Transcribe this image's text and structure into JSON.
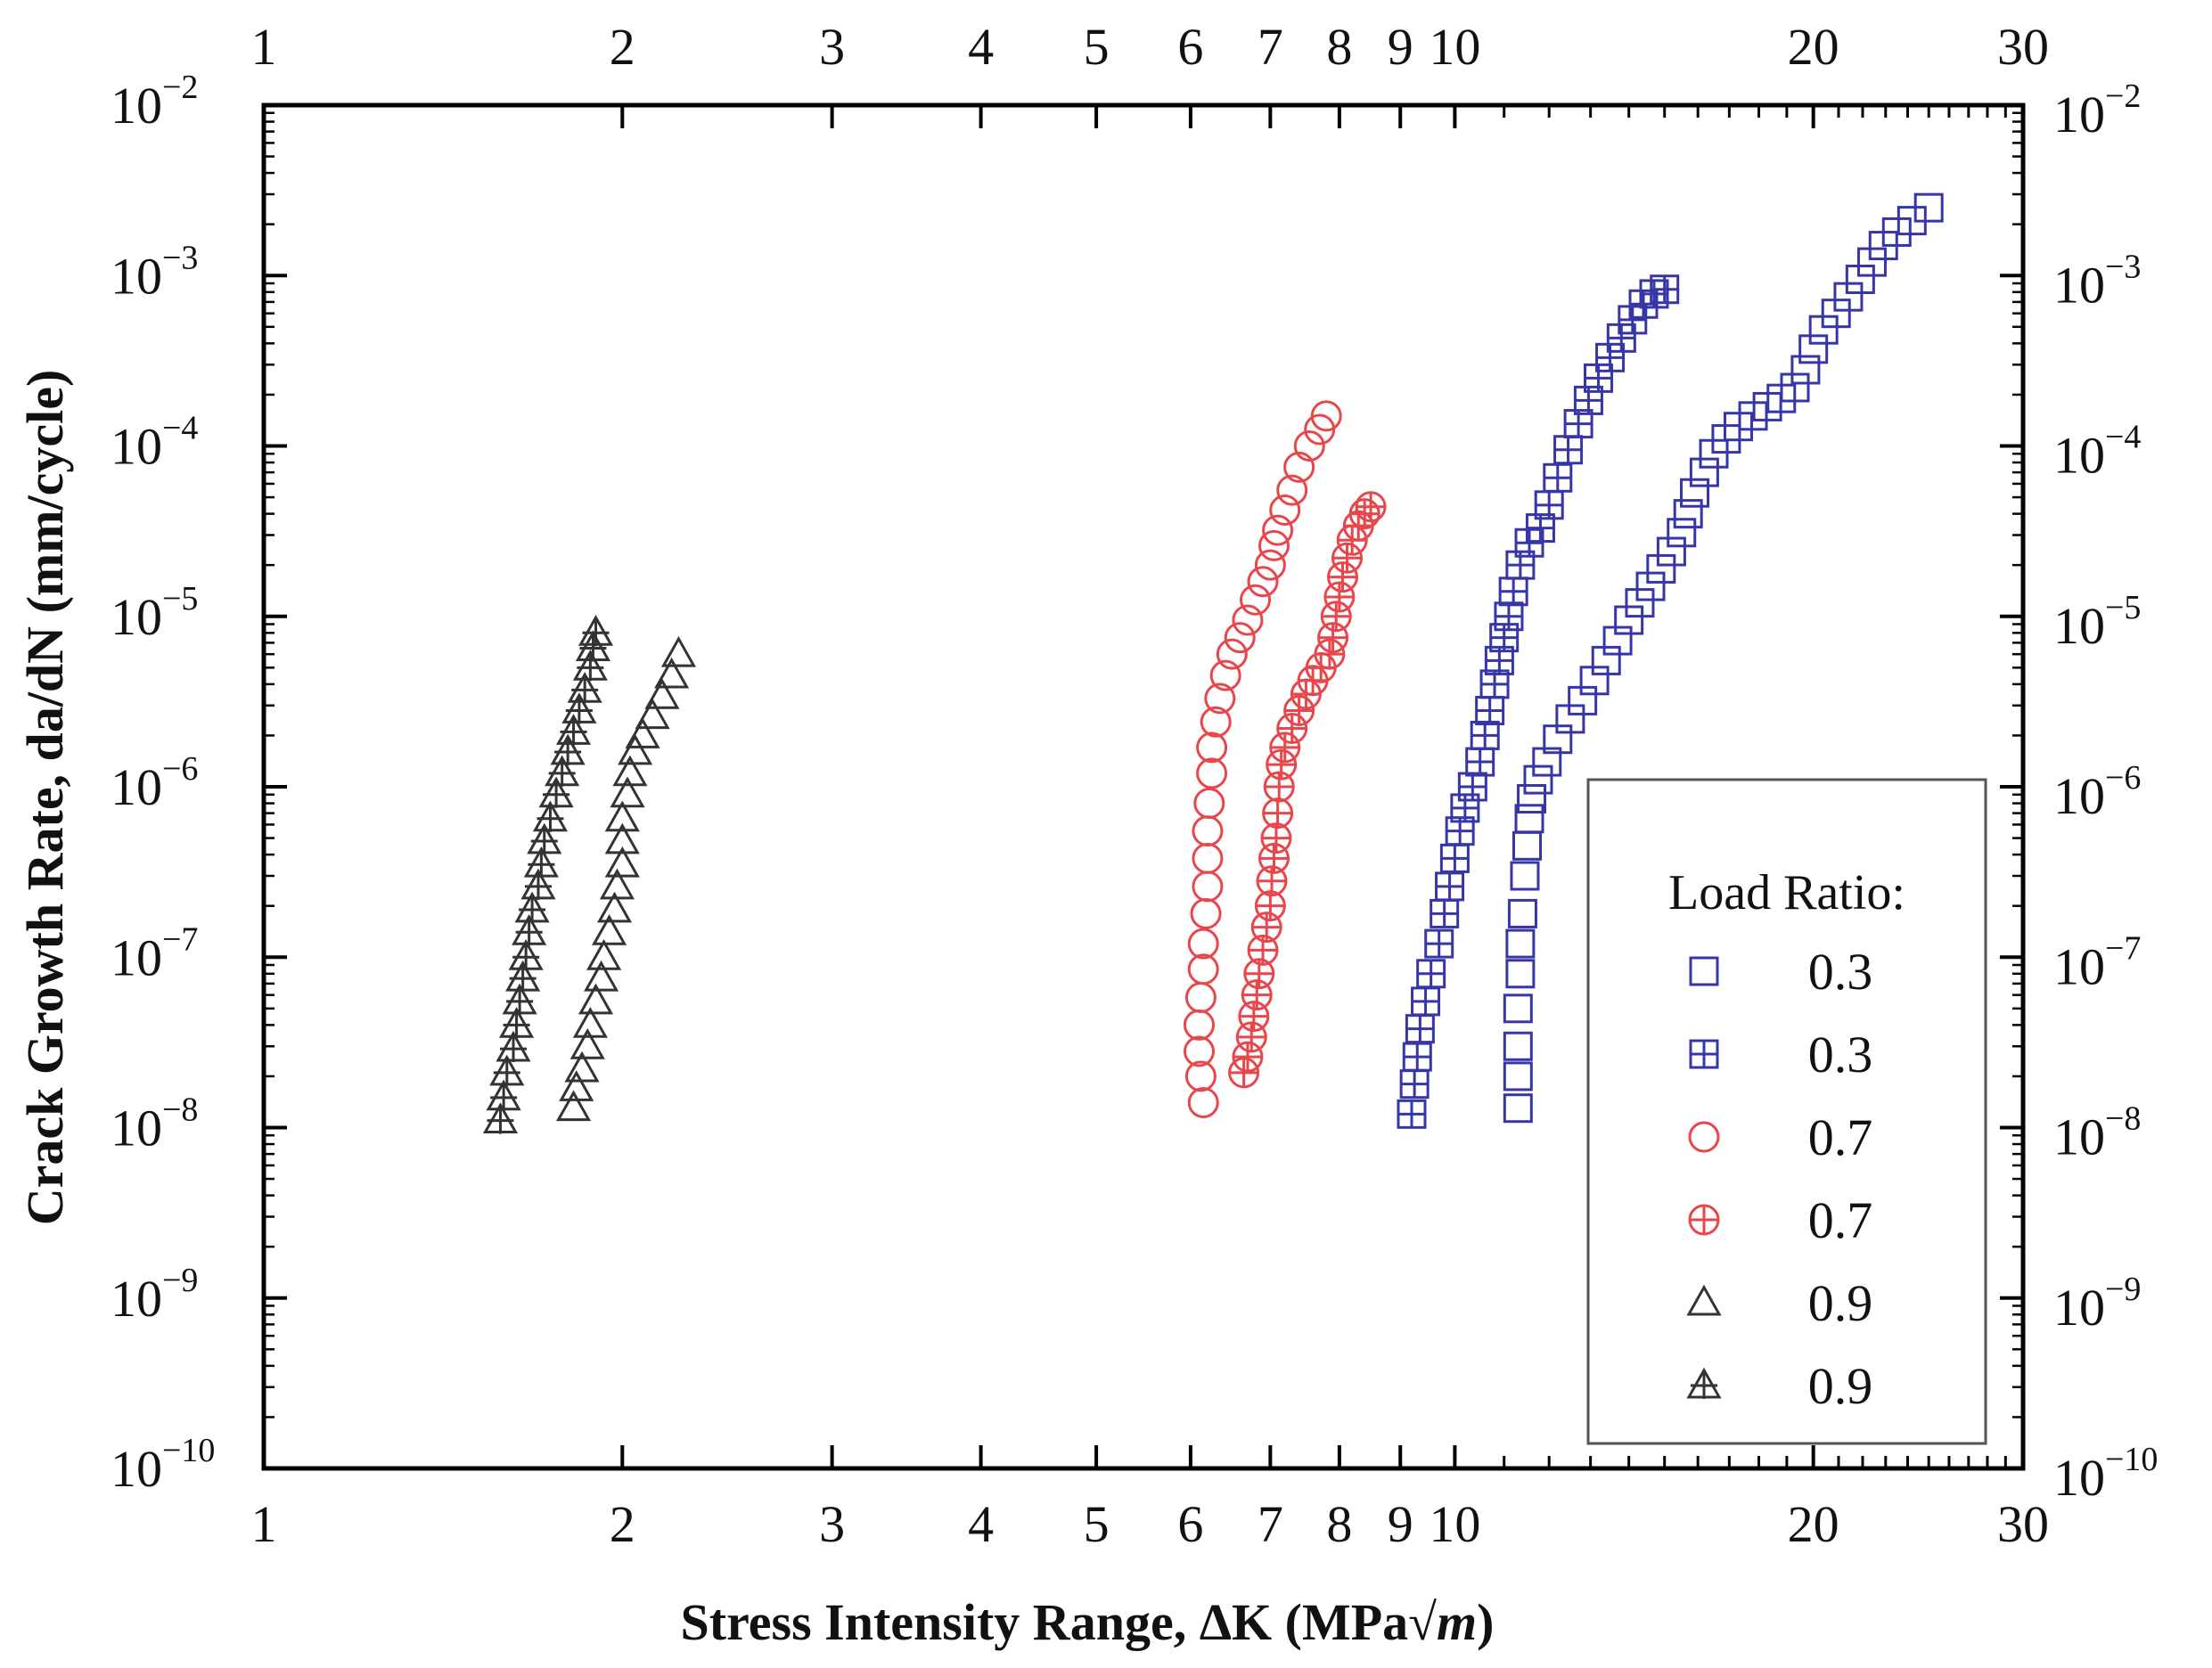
{
  "chart_data": {
    "type": "scatter",
    "title": "",
    "xlabel": "Stress Intensity Range, ΔK (MPa√m)",
    "xlabel_parts": {
      "main": "Stress Intensity Range, ΔK (MPa",
      "radical": "√",
      "unit": "m",
      "close": ")"
    },
    "ylabel": "Crack Growth Rate, da/dN (mm/cycle)",
    "xscale": "log",
    "yscale": "log",
    "xlim": [
      1,
      30
    ],
    "ylim": [
      1e-10,
      0.01
    ],
    "x_ticks": [
      1,
      2,
      3,
      4,
      5,
      6,
      7,
      8,
      9,
      10,
      20,
      30
    ],
    "x_tick_labels": [
      "1",
      "2",
      "3",
      "4",
      "5",
      "6",
      "7",
      "8",
      "9",
      "10",
      "20",
      "30"
    ],
    "y_ticks": [
      {
        "value": 1e-10,
        "base": "10",
        "exp": "−10"
      },
      {
        "value": 1e-09,
        "base": "10",
        "exp": "−9"
      },
      {
        "value": 1e-08,
        "base": "10",
        "exp": "−8"
      },
      {
        "value": 1e-07,
        "base": "10",
        "exp": "−7"
      },
      {
        "value": 1e-06,
        "base": "10",
        "exp": "−6"
      },
      {
        "value": 1e-05,
        "base": "10",
        "exp": "−5"
      },
      {
        "value": 0.0001,
        "base": "10",
        "exp": "−4"
      },
      {
        "value": 0.001,
        "base": "10",
        "exp": "−3"
      },
      {
        "value": 0.01,
        "base": "10",
        "exp": "−2"
      }
    ],
    "legend": {
      "title": "Load Ratio:",
      "position": "lower-right"
    },
    "series": [
      {
        "name": "0.3",
        "marker": "square",
        "color": "#3636a8",
        "points": [
          [
            11.3,
            1.3e-08
          ],
          [
            11.3,
            2e-08
          ],
          [
            11.3,
            3e-08
          ],
          [
            11.3,
            5e-08
          ],
          [
            11.35,
            8e-08
          ],
          [
            11.35,
            1.2e-07
          ],
          [
            11.4,
            1.8e-07
          ],
          [
            11.45,
            3e-07
          ],
          [
            11.5,
            4.5e-07
          ],
          [
            11.55,
            6.5e-07
          ],
          [
            11.6,
            8.5e-07
          ],
          [
            11.75,
            1.1e-06
          ],
          [
            11.95,
            1.4e-06
          ],
          [
            12.2,
            1.9e-06
          ],
          [
            12.5,
            2.5e-06
          ],
          [
            12.8,
            3.2e-06
          ],
          [
            13.1,
            4.2e-06
          ],
          [
            13.4,
            5.5e-06
          ],
          [
            13.7,
            7.2e-06
          ],
          [
            14.0,
            9.5e-06
          ],
          [
            14.3,
            1.2e-05
          ],
          [
            14.6,
            1.5e-05
          ],
          [
            14.9,
            1.9e-05
          ],
          [
            15.2,
            2.4e-05
          ],
          [
            15.5,
            3.1e-05
          ],
          [
            15.7,
            4e-05
          ],
          [
            15.9,
            5.3e-05
          ],
          [
            16.2,
            7e-05
          ],
          [
            16.5,
            9e-05
          ],
          [
            16.9,
            0.00011
          ],
          [
            17.3,
            0.00013
          ],
          [
            17.8,
            0.00015
          ],
          [
            18.3,
            0.00017
          ],
          [
            18.8,
            0.00019
          ],
          [
            19.3,
            0.00022
          ],
          [
            19.7,
            0.00028
          ],
          [
            20.0,
            0.00037
          ],
          [
            20.4,
            0.00048
          ],
          [
            20.9,
            0.0006
          ],
          [
            21.4,
            0.00075
          ],
          [
            21.9,
            0.00095
          ],
          [
            22.4,
            0.0012
          ],
          [
            22.9,
            0.0015
          ],
          [
            23.5,
            0.0018
          ],
          [
            24.2,
            0.0021
          ],
          [
            25.0,
            0.0025
          ]
        ]
      },
      {
        "name": "0.3",
        "marker": "square-plus",
        "color": "#3636a8",
        "points": [
          [
            9.2,
            1.2e-08
          ],
          [
            9.25,
            1.8e-08
          ],
          [
            9.3,
            2.6e-08
          ],
          [
            9.35,
            3.8e-08
          ],
          [
            9.45,
            5.5e-08
          ],
          [
            9.55,
            8e-08
          ],
          [
            9.7,
            1.2e-07
          ],
          [
            9.8,
            1.8e-07
          ],
          [
            9.9,
            2.6e-07
          ],
          [
            10.0,
            3.8e-07
          ],
          [
            10.1,
            5.5e-07
          ],
          [
            10.2,
            7.5e-07
          ],
          [
            10.35,
            1e-06
          ],
          [
            10.5,
            1.4e-06
          ],
          [
            10.6,
            2e-06
          ],
          [
            10.7,
            2.8e-06
          ],
          [
            10.8,
            4e-06
          ],
          [
            10.9,
            5.5e-06
          ],
          [
            11.0,
            7.5e-06
          ],
          [
            11.1,
            1e-05
          ],
          [
            11.2,
            1.4e-05
          ],
          [
            11.35,
            2e-05
          ],
          [
            11.55,
            2.7e-05
          ],
          [
            11.8,
            3.3e-05
          ],
          [
            12.0,
            4.5e-05
          ],
          [
            12.2,
            6.5e-05
          ],
          [
            12.45,
            9.5e-05
          ],
          [
            12.7,
            0.000135
          ],
          [
            12.95,
            0.000185
          ],
          [
            13.2,
            0.00025
          ],
          [
            13.5,
            0.00033
          ],
          [
            13.8,
            0.00043
          ],
          [
            14.1,
            0.00055
          ],
          [
            14.4,
            0.00068
          ],
          [
            14.7,
            0.00078
          ],
          [
            15.0,
            0.00083
          ]
        ]
      },
      {
        "name": "0.7",
        "marker": "circle",
        "color": "#e8464a",
        "points": [
          [
            6.15,
            1.4e-08
          ],
          [
            6.12,
            2e-08
          ],
          [
            6.1,
            2.8e-08
          ],
          [
            6.1,
            4e-08
          ],
          [
            6.12,
            5.8e-08
          ],
          [
            6.15,
            8.5e-08
          ],
          [
            6.15,
            1.2e-07
          ],
          [
            6.18,
            1.8e-07
          ],
          [
            6.2,
            2.6e-07
          ],
          [
            6.2,
            3.8e-07
          ],
          [
            6.2,
            5.5e-07
          ],
          [
            6.22,
            8e-07
          ],
          [
            6.25,
            1.2e-06
          ],
          [
            6.25,
            1.7e-06
          ],
          [
            6.3,
            2.4e-06
          ],
          [
            6.35,
            3.3e-06
          ],
          [
            6.42,
            4.5e-06
          ],
          [
            6.5,
            6e-06
          ],
          [
            6.6,
            7.5e-06
          ],
          [
            6.7,
            9.5e-06
          ],
          [
            6.8,
            1.25e-05
          ],
          [
            6.9,
            1.6e-05
          ],
          [
            7.0,
            2e-05
          ],
          [
            7.05,
            2.6e-05
          ],
          [
            7.1,
            3.2e-05
          ],
          [
            7.2,
            4.2e-05
          ],
          [
            7.3,
            5.5e-05
          ],
          [
            7.4,
            7.5e-05
          ],
          [
            7.55,
            0.0001
          ],
          [
            7.7,
            0.000125
          ],
          [
            7.8,
            0.00015
          ]
        ]
      },
      {
        "name": "0.7",
        "marker": "circle-plus",
        "color": "#e8464a",
        "points": [
          [
            6.65,
            2.1e-08
          ],
          [
            6.7,
            2.6e-08
          ],
          [
            6.75,
            3.4e-08
          ],
          [
            6.78,
            4.5e-08
          ],
          [
            6.82,
            6e-08
          ],
          [
            6.85,
            8e-08
          ],
          [
            6.9,
            1.1e-07
          ],
          [
            6.95,
            1.5e-07
          ],
          [
            7.0,
            2e-07
          ],
          [
            7.02,
            2.8e-07
          ],
          [
            7.05,
            3.8e-07
          ],
          [
            7.08,
            5e-07
          ],
          [
            7.1,
            7e-07
          ],
          [
            7.12,
            1e-06
          ],
          [
            7.15,
            1.35e-06
          ],
          [
            7.2,
            1.7e-06
          ],
          [
            7.3,
            2.2e-06
          ],
          [
            7.4,
            2.8e-06
          ],
          [
            7.5,
            3.5e-06
          ],
          [
            7.6,
            4.2e-06
          ],
          [
            7.72,
            5e-06
          ],
          [
            7.85,
            6e-06
          ],
          [
            7.9,
            7.5e-06
          ],
          [
            7.95,
            1e-05
          ],
          [
            8.0,
            1.3e-05
          ],
          [
            8.05,
            1.7e-05
          ],
          [
            8.12,
            2.2e-05
          ],
          [
            8.2,
            2.8e-05
          ],
          [
            8.3,
            3.4e-05
          ],
          [
            8.4,
            4e-05
          ],
          [
            8.5,
            4.4e-05
          ]
        ]
      },
      {
        "name": "0.9",
        "marker": "triangle",
        "color": "#333333",
        "points": [
          [
            1.82,
            1.3e-08
          ],
          [
            1.83,
            1.7e-08
          ],
          [
            1.85,
            2.2e-08
          ],
          [
            1.87,
            3e-08
          ],
          [
            1.88,
            4e-08
          ],
          [
            1.9,
            5.5e-08
          ],
          [
            1.92,
            7.5e-08
          ],
          [
            1.93,
            1e-07
          ],
          [
            1.95,
            1.4e-07
          ],
          [
            1.97,
            1.9e-07
          ],
          [
            1.98,
            2.6e-07
          ],
          [
            2.0,
            3.5e-07
          ],
          [
            2.0,
            4.8e-07
          ],
          [
            2.0,
            6.5e-07
          ],
          [
            2.02,
            9e-07
          ],
          [
            2.03,
            1.2e-06
          ],
          [
            2.05,
            1.6e-06
          ],
          [
            2.08,
            2e-06
          ],
          [
            2.12,
            2.6e-06
          ],
          [
            2.16,
            3.4e-06
          ],
          [
            2.2,
            4.5e-06
          ],
          [
            2.23,
            6e-06
          ]
        ]
      },
      {
        "name": "0.9",
        "marker": "triangle-plus",
        "color": "#333333",
        "points": [
          [
            1.58,
            1.1e-08
          ],
          [
            1.59,
            1.5e-08
          ],
          [
            1.6,
            2.1e-08
          ],
          [
            1.62,
            2.9e-08
          ],
          [
            1.63,
            4e-08
          ],
          [
            1.64,
            5.5e-08
          ],
          [
            1.65,
            7.5e-08
          ],
          [
            1.66,
            1e-07
          ],
          [
            1.67,
            1.4e-07
          ],
          [
            1.68,
            1.9e-07
          ],
          [
            1.7,
            2.6e-07
          ],
          [
            1.71,
            3.5e-07
          ],
          [
            1.72,
            4.8e-07
          ],
          [
            1.74,
            6.5e-07
          ],
          [
            1.76,
            9e-07
          ],
          [
            1.78,
            1.2e-06
          ],
          [
            1.8,
            1.6e-06
          ],
          [
            1.82,
            2.1e-06
          ],
          [
            1.84,
            2.8e-06
          ],
          [
            1.86,
            3.7e-06
          ],
          [
            1.88,
            5e-06
          ],
          [
            1.89,
            6.5e-06
          ],
          [
            1.9,
            8e-06
          ]
        ]
      }
    ]
  }
}
